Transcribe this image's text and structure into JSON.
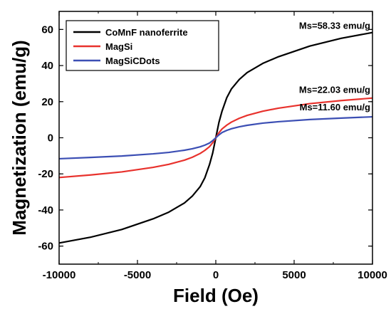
{
  "chart_data": {
    "type": "line",
    "xlabel": "Field (Oe)",
    "ylabel": "Magnetization (emu/g)",
    "xlim": [
      -10000,
      10000
    ],
    "ylim": [
      -70,
      70
    ],
    "x_ticks": [
      -10000,
      -5000,
      0,
      5000,
      10000
    ],
    "x_tick_labels": [
      "-10000",
      "-5000",
      "0",
      "5000",
      "10000"
    ],
    "y_ticks": [
      -60,
      -40,
      -20,
      0,
      20,
      40,
      60
    ],
    "y_tick_labels": [
      "-60",
      "-40",
      "-20",
      "0",
      "20",
      "40",
      "60"
    ],
    "legend_position": "top-left",
    "grid": false,
    "series": [
      {
        "name": "CoMnF nanoferrite",
        "color": "#000000",
        "x": [
          -10000,
          -8000,
          -6000,
          -4000,
          -3000,
          -2000,
          -1500,
          -1000,
          -700,
          -400,
          -200,
          0,
          200,
          400,
          700,
          1000,
          1500,
          2000,
          3000,
          4000,
          6000,
          8000,
          10000
        ],
        "y": [
          -58.3,
          -55.1,
          -50.8,
          -44.9,
          -41.2,
          -36.1,
          -32.3,
          -27.1,
          -22.2,
          -14.8,
          -8.5,
          0,
          8.5,
          14.8,
          22.2,
          27.1,
          32.3,
          36.1,
          41.2,
          44.9,
          50.8,
          55.1,
          58.3
        ]
      },
      {
        "name": "MagSi",
        "color": "#e8322d",
        "x": [
          -10000,
          -8000,
          -6000,
          -4000,
          -3000,
          -2000,
          -1500,
          -1000,
          -700,
          -400,
          -200,
          0,
          200,
          400,
          700,
          1000,
          1500,
          2000,
          3000,
          4000,
          6000,
          8000,
          10000
        ],
        "y": [
          -22.0,
          -20.6,
          -18.9,
          -16.4,
          -14.7,
          -12.4,
          -10.8,
          -8.7,
          -7.0,
          -4.9,
          -2.8,
          0,
          2.8,
          4.9,
          7.0,
          8.7,
          10.8,
          12.4,
          14.7,
          16.4,
          18.9,
          20.6,
          22.0
        ]
      },
      {
        "name": "MagSiCDots",
        "color": "#3c4fb4",
        "x": [
          -10000,
          -8000,
          -6000,
          -4000,
          -3000,
          -2000,
          -1500,
          -1000,
          -700,
          -400,
          -200,
          0,
          200,
          400,
          700,
          1000,
          1500,
          2000,
          3000,
          4000,
          6000,
          8000,
          10000
        ],
        "y": [
          -11.6,
          -10.9,
          -10.1,
          -8.9,
          -8.1,
          -6.9,
          -6.1,
          -5.0,
          -4.1,
          -2.9,
          -1.6,
          0,
          1.6,
          2.9,
          4.1,
          5.0,
          6.1,
          6.9,
          8.1,
          8.9,
          10.1,
          10.9,
          11.6
        ]
      }
    ],
    "annotations": [
      {
        "text": "Ms=58.33 emu/g",
        "x": 10000,
        "y": 58.33
      },
      {
        "text": "Ms=22.03 emu/g",
        "x": 10000,
        "y": 22.03
      },
      {
        "text": "Ms=11.60 emu/g",
        "x": 10000,
        "y": 11.6
      }
    ]
  }
}
